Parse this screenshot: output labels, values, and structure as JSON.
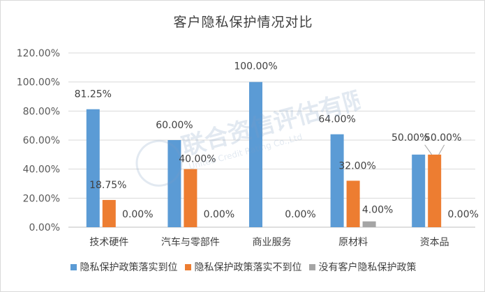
{
  "chart_data": {
    "type": "bar",
    "title": "客户隐私保护情况对比",
    "categories": [
      "技术硬件",
      "汽车与零部件",
      "商业服务",
      "原材料",
      "资本品"
    ],
    "series": [
      {
        "name": "隐私保护政策落实到位",
        "color": "#5b9bd5",
        "values": [
          81.25,
          60.0,
          100.0,
          64.0,
          50.0
        ]
      },
      {
        "name": "隐私保护政策落实不到位",
        "color": "#ed7d31",
        "values": [
          18.75,
          40.0,
          null,
          32.0,
          50.0
        ]
      },
      {
        "name": "没有客户隐私保护政策",
        "color": "#a5a5a5",
        "values": [
          null,
          null,
          null,
          4.0,
          null
        ]
      }
    ],
    "data_labels": [
      [
        "81.25%",
        "60.00%",
        "100.00%",
        "64.00%",
        "50.00%"
      ],
      [
        "18.75%",
        "40.00%",
        "",
        "32.00%",
        "50.00%"
      ],
      [
        "0.00%",
        "0.00%",
        "0.00%",
        "4.00%",
        "0.00%"
      ]
    ],
    "y_ticks": [
      "0.00%",
      "20.00%",
      "40.00%",
      "60.00%",
      "80.00%",
      "100.00%",
      "120.00%"
    ],
    "ylim": [
      0,
      120
    ],
    "grid": true,
    "legend_position": "bottom"
  },
  "watermark": {
    "text_cn": "联合资信评估有限公司",
    "text_en": "United Credit Rating Co.,Ltd"
  }
}
